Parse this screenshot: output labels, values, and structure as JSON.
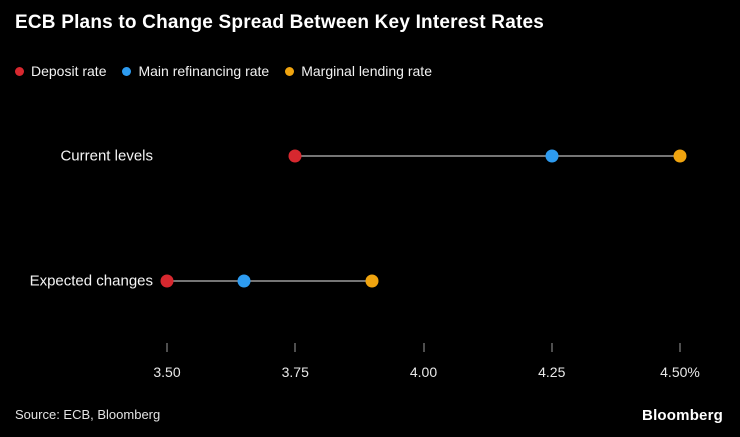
{
  "title": "ECB Plans to Change Spread Between Key Interest Rates",
  "legend": [
    {
      "label": "Deposit rate",
      "color": "#d7282f"
    },
    {
      "label": "Main refinancing rate",
      "color": "#2d9bf0"
    },
    {
      "label": "Marginal lending rate",
      "color": "#f0a40f"
    }
  ],
  "chart_data": {
    "type": "scatter",
    "title": "ECB Plans to Change Spread Between Key Interest Rates",
    "series_names": [
      "Deposit rate",
      "Main refinancing rate",
      "Marginal lending rate"
    ],
    "rows": [
      {
        "label": "Current levels",
        "values": [
          3.75,
          4.25,
          4.5
        ]
      },
      {
        "label": "Expected changes",
        "values": [
          3.5,
          3.65,
          3.9
        ]
      }
    ],
    "xlim": [
      3.5,
      4.5
    ],
    "ticks": [
      {
        "value": 3.5,
        "label": "3.50"
      },
      {
        "value": 3.75,
        "label": "3.75"
      },
      {
        "value": 4.0,
        "label": "4.00"
      },
      {
        "value": 4.25,
        "label": "4.25"
      },
      {
        "value": 4.5,
        "label": "4.50%"
      }
    ],
    "grid": false,
    "legend_position": "top-left",
    "connector_color": "#757575",
    "xlabel": "",
    "ylabel": ""
  },
  "footer": {
    "source": "Source: ECB, Bloomberg",
    "logo": "Bloomberg"
  }
}
